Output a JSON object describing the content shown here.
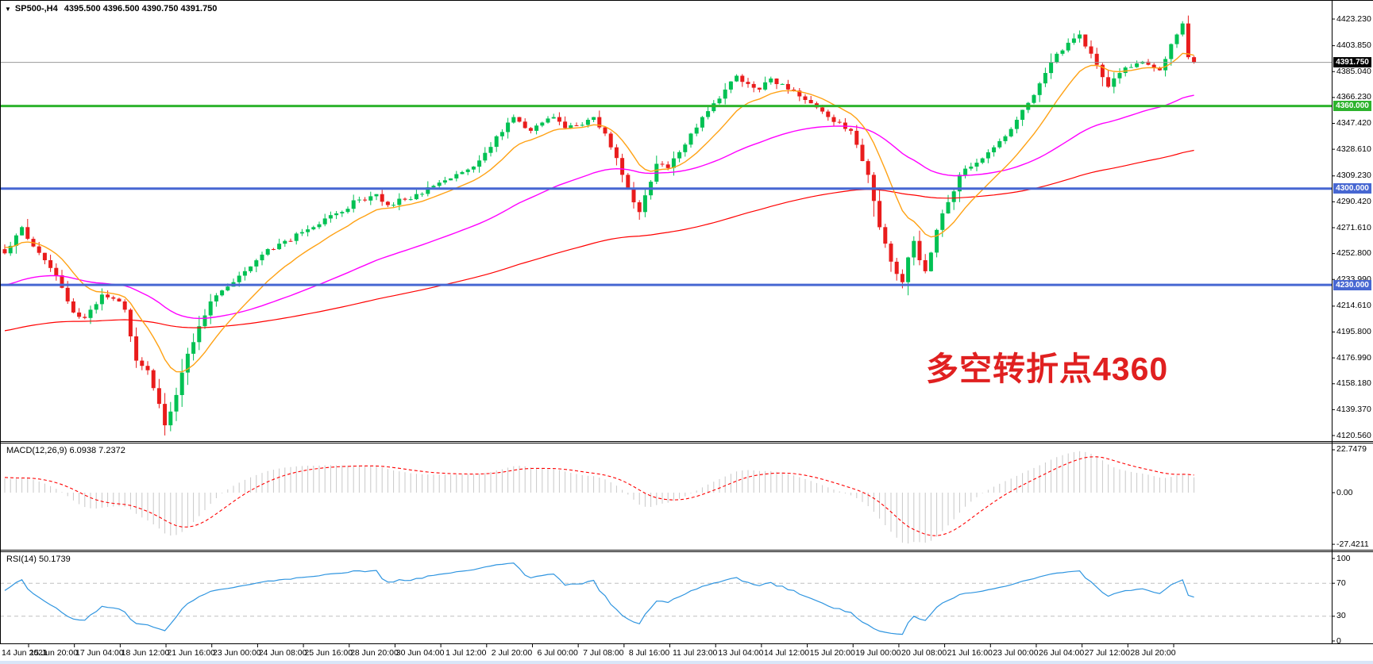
{
  "header": {
    "collapse_icon": "▼",
    "symbol_title": "SP500-,H4",
    "quotes": "4395.500 4396.500 4390.750 4391.750"
  },
  "annotation": {
    "text": "多空转折点4360",
    "color": "#e02020"
  },
  "colors": {
    "candle_up": "#00c153",
    "candle_down": "#e91c1c",
    "ma_fast": "#ffa215",
    "ma_mid": "#ff00ff",
    "ma_slow": "#ff0000",
    "macd_hist": "#c8c8c8",
    "macd_signal": "#ff0000",
    "rsi_line": "#2f95e0",
    "level_green": "#2db32d",
    "level_blue": "#4767d2",
    "current_line": "#9a9a9a",
    "current_box": "#000000"
  },
  "price_axis": {
    "tick_labels": [
      "4423.230",
      "4403.850",
      "4385.040",
      "4366.230",
      "4347.420",
      "4328.610",
      "4309.230",
      "4290.420",
      "4271.610",
      "4252.800",
      "4233.990",
      "4214.610",
      "4195.800",
      "4176.990",
      "4158.180",
      "4139.370",
      "4120.560"
    ],
    "current": {
      "label": "4391.750",
      "value": 4391.75
    },
    "levels": [
      {
        "label": "4360.000",
        "price": 4360,
        "color": "#2db32d"
      },
      {
        "label": "4300.000",
        "price": 4300,
        "color": "#4767d2"
      },
      {
        "label": "4230.000",
        "price": 4230,
        "color": "#4767d2"
      }
    ]
  },
  "macd_panel": {
    "label": "MACD(12,26,9) 6.0938 7.2372",
    "ticks": [
      {
        "label": "22.7479",
        "value": 22.7479
      },
      {
        "label": "0.00",
        "value": 0
      },
      {
        "label": "-27.4211",
        "value": -27.4211
      }
    ]
  },
  "rsi_panel": {
    "label": "RSI(14) 50.1739",
    "ticks": [
      100,
      70,
      30,
      0
    ],
    "dashed_levels": [
      70,
      30
    ]
  },
  "time_axis": {
    "labels": [
      "14 Jun 2021",
      "15 Jun 20:00",
      "17 Jun 04:00",
      "18 Jun 12:00",
      "21 Jun 16:00",
      "23 Jun 00:00",
      "24 Jun 08:00",
      "25 Jun 16:00",
      "28 Jun 20:00",
      "30 Jun 04:00",
      "1 Jul 12:00",
      "2 Jul 20:00",
      "6 Jul 00:00",
      "7 Jul 08:00",
      "8 Jul 16:00",
      "11 Jul 23:00",
      "13 Jul 04:00",
      "14 Jul 12:00",
      "15 Jul 20:00",
      "19 Jul 00:00",
      "20 Jul 08:00",
      "21 Jul 16:00",
      "23 Jul 00:00",
      "26 Jul 04:00",
      "27 Jul 12:00",
      "28 Jul 20:00"
    ]
  },
  "chart_data": {
    "type": "candlestick",
    "symbol": "SP500-",
    "timeframe": "H4",
    "bars": 209,
    "last_bar": {
      "open": 4395.5,
      "high": 4396.5,
      "low": 4390.75,
      "close": 4391.75
    },
    "price_range_visible": [
      4120.56,
      4423.23
    ],
    "price_keyframes": [
      [
        0,
        4253
      ],
      [
        2,
        4266
      ],
      [
        3,
        4272
      ],
      [
        5,
        4258
      ],
      [
        7,
        4248
      ],
      [
        9,
        4237
      ],
      [
        11,
        4218
      ],
      [
        12,
        4210
      ],
      [
        14,
        4206
      ],
      [
        15,
        4212
      ],
      [
        17,
        4223
      ],
      [
        19,
        4220
      ],
      [
        21,
        4212
      ],
      [
        23,
        4175
      ],
      [
        25,
        4168
      ],
      [
        26,
        4155
      ],
      [
        28,
        4128
      ],
      [
        29,
        4138
      ],
      [
        30,
        4150
      ],
      [
        32,
        4180
      ],
      [
        34,
        4200
      ],
      [
        36,
        4218
      ],
      [
        38,
        4226
      ],
      [
        40,
        4232
      ],
      [
        42,
        4240
      ],
      [
        45,
        4252
      ],
      [
        49,
        4262
      ],
      [
        54,
        4272
      ],
      [
        58,
        4282
      ],
      [
        62,
        4292
      ],
      [
        65,
        4296
      ],
      [
        67,
        4288
      ],
      [
        70,
        4292
      ],
      [
        72,
        4296
      ],
      [
        75,
        4302
      ],
      [
        77,
        4306
      ],
      [
        80,
        4312
      ],
      [
        82,
        4316
      ],
      [
        84,
        4326
      ],
      [
        86,
        4338
      ],
      [
        88,
        4348
      ],
      [
        89,
        4352
      ],
      [
        91,
        4344
      ],
      [
        92,
        4342
      ],
      [
        94,
        4348
      ],
      [
        96,
        4352
      ],
      [
        98,
        4344
      ],
      [
        100,
        4346
      ],
      [
        102,
        4350
      ],
      [
        103,
        4352
      ],
      [
        105,
        4340
      ],
      [
        106,
        4330
      ],
      [
        108,
        4310
      ],
      [
        109,
        4300
      ],
      [
        111,
        4283
      ],
      [
        113,
        4305
      ],
      [
        114,
        4318
      ],
      [
        116,
        4315
      ],
      [
        117,
        4322
      ],
      [
        119,
        4332
      ],
      [
        120,
        4340
      ],
      [
        122,
        4352
      ],
      [
        124,
        4362
      ],
      [
        126,
        4372
      ],
      [
        128,
        4382
      ],
      [
        130,
        4376
      ],
      [
        132,
        4372
      ],
      [
        134,
        4380
      ],
      [
        136,
        4376
      ],
      [
        137,
        4372
      ],
      [
        139,
        4367
      ],
      [
        141,
        4362
      ],
      [
        143,
        4356
      ],
      [
        144,
        4352
      ],
      [
        146,
        4348
      ],
      [
        148,
        4342
      ],
      [
        150,
        4320
      ],
      [
        151,
        4310
      ],
      [
        153,
        4272
      ],
      [
        154,
        4260
      ],
      [
        156,
        4238
      ],
      [
        157,
        4232
      ],
      [
        158,
        4250
      ],
      [
        159,
        4262
      ],
      [
        160,
        4248
      ],
      [
        161,
        4240
      ],
      [
        163,
        4270
      ],
      [
        164,
        4282
      ],
      [
        166,
        4298
      ],
      [
        167,
        4310
      ],
      [
        169,
        4316
      ],
      [
        171,
        4322
      ],
      [
        173,
        4330
      ],
      [
        175,
        4338
      ],
      [
        177,
        4350
      ],
      [
        180,
        4368
      ],
      [
        182,
        4384
      ],
      [
        184,
        4398
      ],
      [
        186,
        4406
      ],
      [
        188,
        4412
      ],
      [
        190,
        4398
      ],
      [
        191,
        4390
      ],
      [
        193,
        4374
      ],
      [
        195,
        4384
      ],
      [
        196,
        4388
      ],
      [
        198,
        4391
      ],
      [
        200,
        4390
      ],
      [
        202,
        4386
      ],
      [
        204,
        4405
      ],
      [
        205,
        4412
      ],
      [
        206,
        4420
      ],
      [
        207,
        4395.5
      ],
      [
        208,
        4391.75
      ]
    ],
    "horizontal_levels": [
      {
        "price": 4360,
        "color": "green",
        "note": "bull/bear pivot level"
      },
      {
        "price": 4300,
        "color": "blue"
      },
      {
        "price": 4230,
        "color": "blue"
      }
    ],
    "moving_averages": [
      {
        "name": "fast",
        "color": "#ffa215",
        "period": 12
      },
      {
        "name": "medium",
        "color": "#ff00ff",
        "period": 55
      },
      {
        "name": "slow",
        "color": "#ff0000",
        "period": 160
      }
    ],
    "macd": {
      "params": [
        12,
        26,
        9
      ],
      "current_macd": 6.0938,
      "current_signal": 7.2372,
      "scale_max": 22.7479,
      "scale_min": -27.4211
    },
    "rsi": {
      "period": 14,
      "current": 50.1739,
      "scale": [
        0,
        100
      ],
      "dashed_levels": [
        70,
        30
      ]
    }
  }
}
